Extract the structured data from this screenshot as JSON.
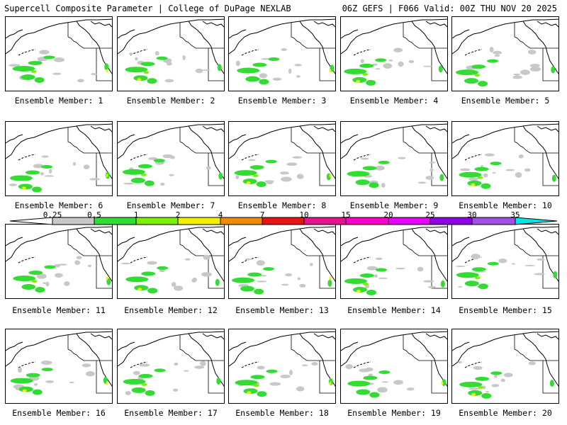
{
  "header": {
    "left": "Supercell Composite Parameter | College of DuPage NEXLAB",
    "right": "06Z GEFS | F066 Valid: 00Z THU NOV 20 2025"
  },
  "panels": [
    {
      "member": 1,
      "label": "Ensemble Member: 1"
    },
    {
      "member": 2,
      "label": "Ensemble Member: 2"
    },
    {
      "member": 3,
      "label": "Ensemble Member: 3"
    },
    {
      "member": 4,
      "label": "Ensemble Member: 4"
    },
    {
      "member": 5,
      "label": "Ensemble Member: 5"
    },
    {
      "member": 6,
      "label": "Ensemble Member: 6"
    },
    {
      "member": 7,
      "label": "Ensemble Member: 7"
    },
    {
      "member": 8,
      "label": "Ensemble Member: 8"
    },
    {
      "member": 9,
      "label": "Ensemble Member: 9"
    },
    {
      "member": 10,
      "label": "Ensemble Member: 10"
    },
    {
      "member": 11,
      "label": "Ensemble Member: 11"
    },
    {
      "member": 12,
      "label": "Ensemble Member: 12"
    },
    {
      "member": 13,
      "label": "Ensemble Member: 13"
    },
    {
      "member": 14,
      "label": "Ensemble Member: 14"
    },
    {
      "member": 15,
      "label": "Ensemble Member: 15"
    },
    {
      "member": 16,
      "label": "Ensemble Member: 16"
    },
    {
      "member": 17,
      "label": "Ensemble Member: 17"
    },
    {
      "member": 18,
      "label": "Ensemble Member: 18"
    },
    {
      "member": 19,
      "label": "Ensemble Member: 19"
    },
    {
      "member": 20,
      "label": "Ensemble Member: 20"
    }
  ],
  "colorbar": {
    "labels": [
      "0.25",
      "0.5",
      "1",
      "2",
      "4",
      "7",
      "10",
      "15",
      "20",
      "25",
      "30",
      "35"
    ],
    "colors": [
      "#c8c8c8",
      "#32dc32",
      "#7cf000",
      "#f0f000",
      "#f08c00",
      "#e61414",
      "#e6148c",
      "#ff00c8",
      "#e600ff",
      "#8c00e6",
      "#a050e6",
      "#00e6e6"
    ]
  },
  "map_colors": {
    "low": "#c8c8c8",
    "green": "#32dc32",
    "lime": "#7cf000",
    "yellow": "#f0f000",
    "coast": "#000000"
  }
}
